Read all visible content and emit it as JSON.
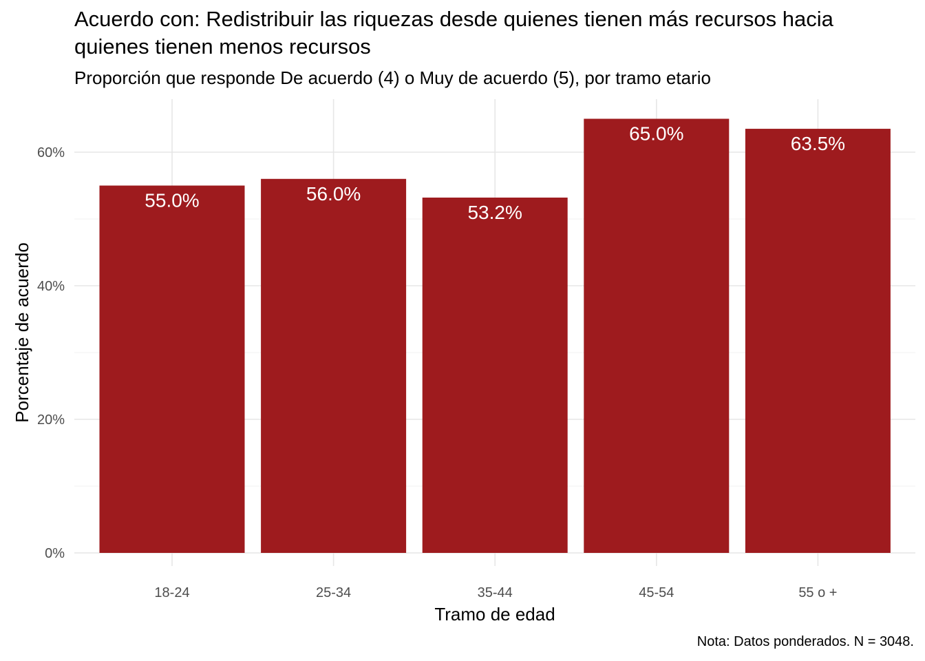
{
  "chart_data": {
    "type": "bar",
    "title": "Acuerdo con: Redistribuir las riquezas desde quienes tienen más recursos hacia quienes tienen menos recursos",
    "subtitle": "Proporción que responde De acuerdo (4) o Muy de acuerdo (5), por tramo etario",
    "caption": "Nota: Datos ponderados. N = 3048.",
    "xlabel": "Tramo de edad",
    "ylabel": "Porcentaje de acuerdo",
    "categories": [
      "18-24",
      "25-34",
      "35-44",
      "45-54",
      "55 o +"
    ],
    "values": [
      55.0,
      56.0,
      53.2,
      65.0,
      63.5
    ],
    "data_labels": [
      "55.0%",
      "56.0%",
      "53.2%",
      "65.0%",
      "63.5%"
    ],
    "y_ticks": [
      0,
      20,
      40,
      60
    ],
    "y_tick_labels": [
      "0%",
      "20%",
      "40%",
      "60%"
    ],
    "ylim": [
      0,
      68.25
    ],
    "bar_color": "#9E1B1E",
    "grid": true,
    "legend": "none"
  }
}
